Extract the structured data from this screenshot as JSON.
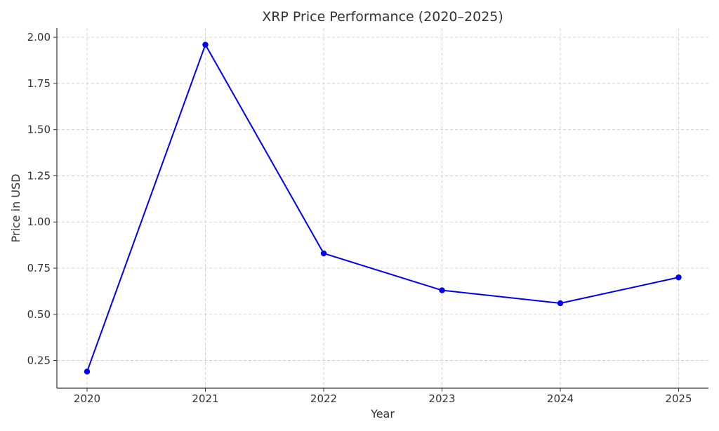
{
  "chart_data": {
    "type": "line",
    "title": "XRP Price Performance (2020–2025)",
    "xlabel": "Year",
    "ylabel": "Price in USD",
    "x": [
      "2020",
      "2021",
      "2022",
      "2023",
      "2024",
      "2025"
    ],
    "series": [
      {
        "values": [
          0.19,
          1.96,
          0.83,
          0.63,
          0.56,
          0.7
        ],
        "color": "#0000ee",
        "marker": "circle"
      }
    ],
    "y_ticks": [
      "0.25",
      "0.50",
      "0.75",
      "1.00",
      "1.25",
      "1.50",
      "1.75",
      "2.00"
    ],
    "ylim": [
      0.1,
      2.05
    ],
    "grid": true,
    "grid_style": "dashed"
  }
}
